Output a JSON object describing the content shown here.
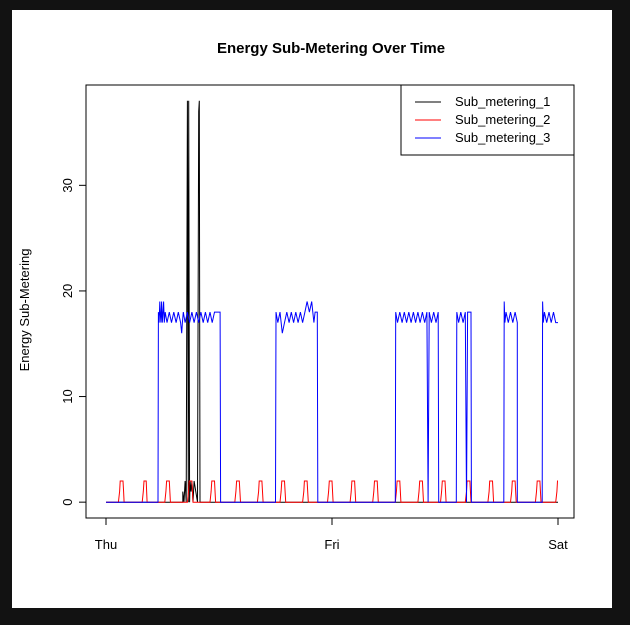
{
  "chart_data": {
    "type": "line",
    "title": "Energy Sub-Metering Over Time",
    "xlabel": "",
    "ylabel": "Energy Sub-Metering",
    "x_ticks": [
      {
        "value": "Thu",
        "pos": 0
      },
      {
        "value": "Fri",
        "pos": 1
      },
      {
        "value": "Sat",
        "pos": 2
      }
    ],
    "x_range": [
      0,
      2
    ],
    "y_ticks": [
      0,
      10,
      20,
      30
    ],
    "ylim": [
      -1.5,
      39.5
    ],
    "grid": false,
    "legend_position": "top-right",
    "series": [
      {
        "name": "Sub_metering_1",
        "color": "#000000",
        "points": [
          [
            0,
            0
          ],
          [
            0.34,
            0
          ],
          [
            0.34,
            1
          ],
          [
            0.345,
            0
          ],
          [
            0.35,
            2
          ],
          [
            0.355,
            0
          ],
          [
            0.36,
            38
          ],
          [
            0.364,
            0
          ],
          [
            0.366,
            38
          ],
          [
            0.37,
            0
          ],
          [
            0.372,
            2
          ],
          [
            0.376,
            1
          ],
          [
            0.38,
            2
          ],
          [
            0.385,
            0
          ],
          [
            0.39,
            2
          ],
          [
            0.405,
            0
          ],
          [
            0.41,
            37
          ],
          [
            0.413,
            38
          ],
          [
            0.416,
            0
          ],
          [
            0.42,
            0
          ],
          [
            2,
            0
          ]
        ]
      },
      {
        "name": "Sub_metering_2",
        "color": "#ff0000",
        "points": [
          [
            0,
            0
          ],
          [
            0.055,
            0
          ],
          [
            0.06,
            1
          ],
          [
            0.063,
            2
          ],
          [
            0.075,
            2
          ],
          [
            0.078,
            1
          ],
          [
            0.08,
            0
          ],
          [
            0.16,
            0
          ],
          [
            0.165,
            1
          ],
          [
            0.168,
            2
          ],
          [
            0.178,
            2
          ],
          [
            0.182,
            0
          ],
          [
            0.26,
            0
          ],
          [
            0.265,
            1
          ],
          [
            0.268,
            2
          ],
          [
            0.28,
            2
          ],
          [
            0.285,
            0
          ],
          [
            0.36,
            0
          ],
          [
            0.365,
            1
          ],
          [
            0.368,
            2
          ],
          [
            0.38,
            2
          ],
          [
            0.385,
            0
          ],
          [
            0.46,
            0
          ],
          [
            0.465,
            1
          ],
          [
            0.468,
            2
          ],
          [
            0.48,
            2
          ],
          [
            0.485,
            0
          ],
          [
            0.57,
            0
          ],
          [
            0.575,
            1
          ],
          [
            0.578,
            2
          ],
          [
            0.59,
            2
          ],
          [
            0.595,
            0
          ],
          [
            0.67,
            0
          ],
          [
            0.675,
            1
          ],
          [
            0.678,
            2
          ],
          [
            0.69,
            2
          ],
          [
            0.695,
            0
          ],
          [
            0.77,
            0
          ],
          [
            0.775,
            1
          ],
          [
            0.778,
            2
          ],
          [
            0.79,
            2
          ],
          [
            0.795,
            0
          ],
          [
            0.87,
            0
          ],
          [
            0.875,
            1
          ],
          [
            0.878,
            2
          ],
          [
            0.89,
            2
          ],
          [
            0.895,
            0
          ],
          [
            0.98,
            0
          ],
          [
            0.985,
            1
          ],
          [
            0.988,
            2
          ],
          [
            1.0,
            2
          ],
          [
            1.005,
            0
          ],
          [
            1.08,
            0
          ],
          [
            1.085,
            1
          ],
          [
            1.088,
            2
          ],
          [
            1.1,
            2
          ],
          [
            1.105,
            0
          ],
          [
            1.18,
            0
          ],
          [
            1.185,
            1
          ],
          [
            1.188,
            2
          ],
          [
            1.2,
            2
          ],
          [
            1.205,
            0
          ],
          [
            1.28,
            0
          ],
          [
            1.285,
            1
          ],
          [
            1.288,
            2
          ],
          [
            1.3,
            2
          ],
          [
            1.305,
            0
          ],
          [
            1.38,
            0
          ],
          [
            1.385,
            1
          ],
          [
            1.388,
            2
          ],
          [
            1.4,
            2
          ],
          [
            1.405,
            0
          ],
          [
            1.48,
            0
          ],
          [
            1.485,
            1
          ],
          [
            1.488,
            2
          ],
          [
            1.5,
            2
          ],
          [
            1.505,
            0
          ],
          [
            1.59,
            0
          ],
          [
            1.595,
            1
          ],
          [
            1.598,
            2
          ],
          [
            1.61,
            2
          ],
          [
            1.615,
            0
          ],
          [
            1.69,
            0
          ],
          [
            1.695,
            1
          ],
          [
            1.698,
            2
          ],
          [
            1.71,
            2
          ],
          [
            1.715,
            0
          ],
          [
            1.79,
            0
          ],
          [
            1.795,
            1
          ],
          [
            1.798,
            2
          ],
          [
            1.81,
            2
          ],
          [
            1.815,
            0
          ],
          [
            1.9,
            0
          ],
          [
            1.905,
            1
          ],
          [
            1.908,
            2
          ],
          [
            1.92,
            2
          ],
          [
            1.925,
            0
          ],
          [
            1.99,
            0
          ],
          [
            1.995,
            1
          ],
          [
            1.998,
            2
          ],
          [
            2,
            2
          ]
        ]
      },
      {
        "name": "Sub_metering_3",
        "color": "#0000ff",
        "points": [
          [
            0,
            0
          ],
          [
            0.23,
            0
          ],
          [
            0.232,
            18
          ],
          [
            0.235,
            17
          ],
          [
            0.238,
            19
          ],
          [
            0.24,
            18
          ],
          [
            0.243,
            17
          ],
          [
            0.246,
            19
          ],
          [
            0.249,
            17
          ],
          [
            0.252,
            18
          ],
          [
            0.255,
            19
          ],
          [
            0.258,
            17
          ],
          [
            0.262,
            18
          ],
          [
            0.27,
            17
          ],
          [
            0.28,
            18
          ],
          [
            0.29,
            17
          ],
          [
            0.3,
            18
          ],
          [
            0.31,
            17
          ],
          [
            0.32,
            18
          ],
          [
            0.33,
            17
          ],
          [
            0.335,
            16
          ],
          [
            0.338,
            17
          ],
          [
            0.342,
            18
          ],
          [
            0.35,
            17
          ],
          [
            0.36,
            18
          ],
          [
            0.37,
            17
          ],
          [
            0.38,
            18
          ],
          [
            0.39,
            17
          ],
          [
            0.4,
            18
          ],
          [
            0.41,
            17
          ],
          [
            0.42,
            18
          ],
          [
            0.43,
            17
          ],
          [
            0.44,
            18
          ],
          [
            0.45,
            17
          ],
          [
            0.46,
            18
          ],
          [
            0.47,
            17
          ],
          [
            0.48,
            18
          ],
          [
            0.505,
            18
          ],
          [
            0.507,
            0
          ],
          [
            0.75,
            0
          ],
          [
            0.752,
            18
          ],
          [
            0.76,
            17
          ],
          [
            0.77,
            18
          ],
          [
            0.78,
            16
          ],
          [
            0.79,
            17
          ],
          [
            0.8,
            18
          ],
          [
            0.81,
            17
          ],
          [
            0.82,
            18
          ],
          [
            0.83,
            17
          ],
          [
            0.84,
            18
          ],
          [
            0.85,
            17
          ],
          [
            0.86,
            18
          ],
          [
            0.87,
            17
          ],
          [
            0.88,
            18
          ],
          [
            0.89,
            19
          ],
          [
            0.9,
            18
          ],
          [
            0.91,
            19
          ],
          [
            0.92,
            17
          ],
          [
            0.925,
            18
          ],
          [
            0.935,
            18
          ],
          [
            0.937,
            0
          ],
          [
            1.28,
            0
          ],
          [
            1.282,
            18
          ],
          [
            1.29,
            17
          ],
          [
            1.3,
            18
          ],
          [
            1.31,
            17
          ],
          [
            1.32,
            18
          ],
          [
            1.33,
            17
          ],
          [
            1.34,
            18
          ],
          [
            1.35,
            17
          ],
          [
            1.36,
            18
          ],
          [
            1.37,
            17
          ],
          [
            1.38,
            18
          ],
          [
            1.39,
            17
          ],
          [
            1.4,
            18
          ],
          [
            1.41,
            17
          ],
          [
            1.42,
            18
          ],
          [
            1.425,
            0
          ],
          [
            1.43,
            18
          ],
          [
            1.44,
            17
          ],
          [
            1.45,
            18
          ],
          [
            1.46,
            17
          ],
          [
            1.47,
            18
          ],
          [
            1.472,
            0
          ],
          [
            1.55,
            0
          ],
          [
            1.552,
            18
          ],
          [
            1.56,
            17
          ],
          [
            1.57,
            18
          ],
          [
            1.58,
            17
          ],
          [
            1.59,
            18
          ],
          [
            1.595,
            0
          ],
          [
            1.6,
            18
          ],
          [
            1.615,
            18
          ],
          [
            1.617,
            0
          ],
          [
            1.76,
            0
          ],
          [
            1.762,
            19
          ],
          [
            1.765,
            17
          ],
          [
            1.77,
            18
          ],
          [
            1.78,
            17
          ],
          [
            1.79,
            18
          ],
          [
            1.8,
            17
          ],
          [
            1.81,
            18
          ],
          [
            1.82,
            17
          ],
          [
            1.82,
            0
          ],
          [
            1.93,
            0
          ],
          [
            1.932,
            19
          ],
          [
            1.935,
            17
          ],
          [
            1.94,
            18
          ],
          [
            1.95,
            17
          ],
          [
            1.96,
            18
          ],
          [
            1.97,
            17
          ],
          [
            1.98,
            18
          ],
          [
            1.99,
            17
          ],
          [
            2,
            17
          ]
        ]
      }
    ]
  }
}
